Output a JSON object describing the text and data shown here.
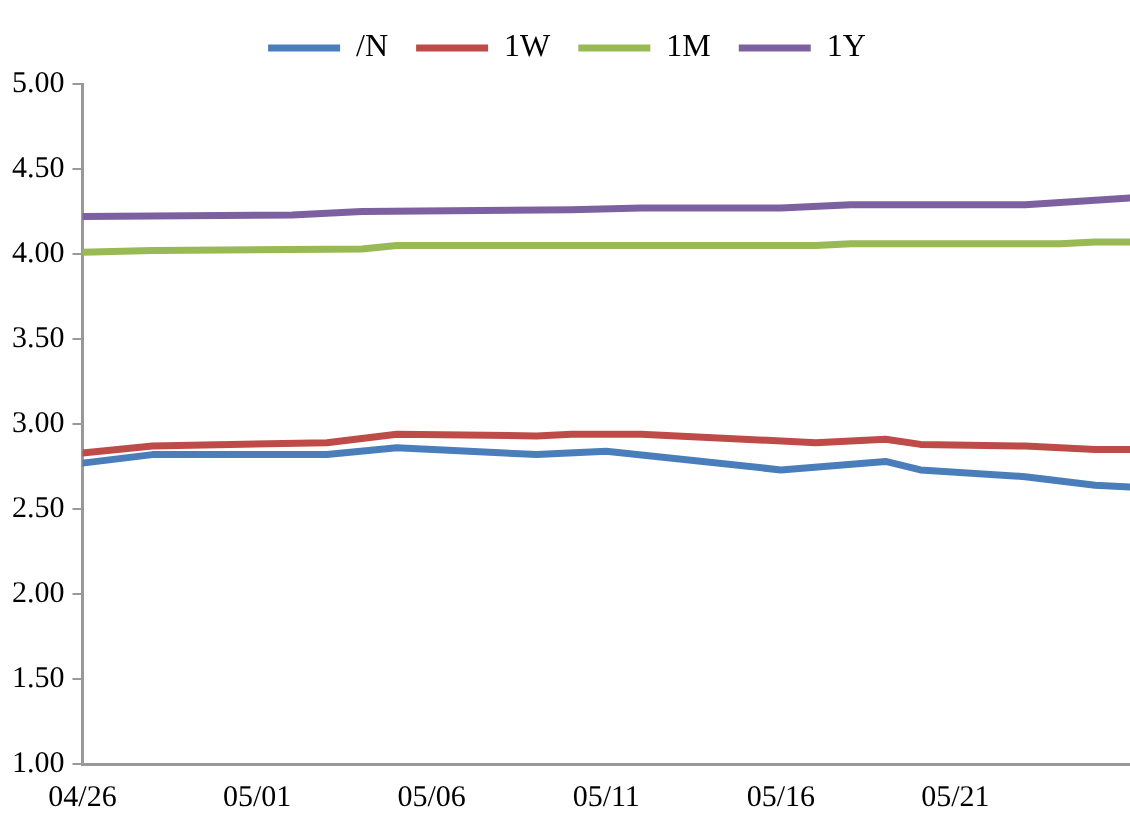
{
  "chart_data": {
    "type": "line",
    "legend": "top",
    "grid": false,
    "marker": "none",
    "line_style": "solid",
    "xlim": [
      "--04-26",
      "--05-26"
    ],
    "xticks": [
      {
        "value": "--04-26",
        "label": "04/26"
      },
      {
        "value": "--05-01",
        "label": "05/01"
      },
      {
        "value": "--05-06",
        "label": "05/06"
      },
      {
        "value": "--05-11",
        "label": "05/11"
      },
      {
        "value": "--05-16",
        "label": "05/16"
      },
      {
        "value": "--05-21",
        "label": "05/21"
      }
    ],
    "ylim": [
      1,
      5
    ],
    "yticks": [
      {
        "value": 1,
        "label": "1.00"
      },
      {
        "value": 1.5,
        "label": "1.50"
      },
      {
        "value": 2,
        "label": "2.00"
      },
      {
        "value": 2.5,
        "label": "2.50"
      },
      {
        "value": 3,
        "label": "3.00"
      },
      {
        "value": 3.5,
        "label": "3.50"
      },
      {
        "value": 4,
        "label": "4.00"
      },
      {
        "value": 4.5,
        "label": "4.50"
      },
      {
        "value": 5,
        "label": "5.00"
      }
    ],
    "series": [
      {
        "name": "/N",
        "color": "#4a7ebb",
        "x": [
          "--04-26",
          "--04-28",
          "--05-03",
          "--05-05",
          "--05-09",
          "--05-11",
          "--05-16",
          "--05-19",
          "--05-20",
          "--05-23",
          "--05-25",
          "--05-26"
        ],
        "values": [
          2.77,
          2.82,
          2.82,
          2.86,
          2.82,
          2.84,
          2.73,
          2.78,
          2.73,
          2.69,
          2.64,
          2.63
        ]
      },
      {
        "name": "1W",
        "color": "#be4b48",
        "x": [
          "--04-26",
          "--04-28",
          "--05-03",
          "--05-05",
          "--05-09",
          "--05-10",
          "--05-12",
          "--05-17",
          "--05-19",
          "--05-20",
          "--05-23",
          "--05-25",
          "--05-26"
        ],
        "values": [
          2.83,
          2.87,
          2.89,
          2.94,
          2.93,
          2.94,
          2.94,
          2.89,
          2.91,
          2.88,
          2.87,
          2.85,
          2.85
        ]
      },
      {
        "name": "1M",
        "color": "#98b954",
        "x": [
          "--04-26",
          "--04-28",
          "--05-04",
          "--05-05",
          "--05-17",
          "--05-18",
          "--05-24",
          "--05-25",
          "--05-26"
        ],
        "values": [
          4.01,
          4.02,
          4.03,
          4.05,
          4.05,
          4.06,
          4.06,
          4.07,
          4.07
        ]
      },
      {
        "name": "1Y",
        "color": "#7d60a0",
        "x": [
          "--04-26",
          "--05-02",
          "--05-04",
          "--05-10",
          "--05-12",
          "--05-16",
          "--05-18",
          "--05-23",
          "--05-26"
        ],
        "values": [
          4.22,
          4.23,
          4.25,
          4.26,
          4.27,
          4.27,
          4.29,
          4.29,
          4.33
        ]
      }
    ]
  }
}
